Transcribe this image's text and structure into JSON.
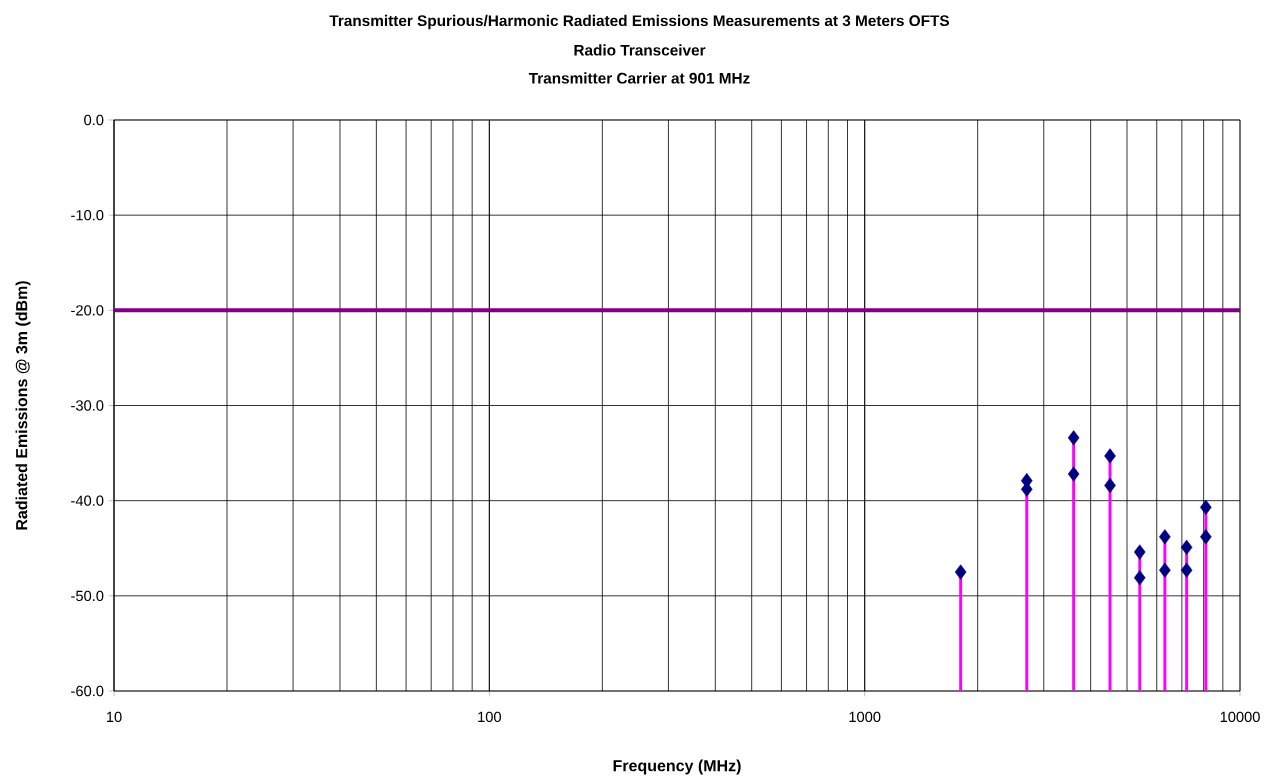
{
  "chart_data": {
    "type": "scatter",
    "title": "Transmitter Spurious/Harmonic Radiated Emissions  Measurements at 3 Meters OFTS",
    "subtitle": "Radio Transceiver",
    "annotations": [
      "Transmitter Carrier at 901 MHz"
    ],
    "xlabel": "Frequency (MHz)",
    "ylabel": "Radiated Emissions @ 3m (dBm)",
    "x": [
      1802,
      2703,
      3604,
      4505,
      5406,
      6307,
      7208,
      8109
    ],
    "series": [
      {
        "type": "scatter",
        "color": "#000080",
        "marker": "diamond",
        "values": [
          -47.5,
          -37.9,
          -33.4,
          -35.3,
          -45.4,
          -43.8,
          -44.9,
          -40.7
        ],
        "errors": [
          [
            -60,
            -47.5
          ],
          [
            -60,
            -37.9
          ],
          [
            -60,
            -33.4
          ],
          [
            -60,
            -35.3
          ],
          [
            -60,
            -45.4
          ],
          [
            -60,
            -43.8
          ],
          [
            -60,
            -44.9
          ],
          [
            -60,
            -40.7
          ]
        ]
      },
      {
        "type": "scatter",
        "color": "#000080",
        "marker": "diamond",
        "values": [
          null,
          -38.8,
          -37.2,
          -38.4,
          -48.1,
          -47.3,
          -47.3,
          -43.8
        ]
      }
    ],
    "log": "x",
    "xlim": [
      10,
      10000
    ],
    "xticks": [
      10,
      100,
      1000,
      10000
    ],
    "ylim": [
      -60,
      0
    ],
    "yticks": [
      {
        "value": -60,
        "label": "-60.0"
      },
      {
        "value": -50,
        "label": "-50.0"
      },
      {
        "value": -40,
        "label": "-40.0"
      },
      {
        "value": -30,
        "label": "-30.0"
      },
      {
        "value": -20,
        "label": "-20.0"
      },
      {
        "value": -10,
        "label": "-10.0"
      },
      {
        "value": 0,
        "label": "0.0"
      }
    ],
    "grid": true,
    "ref_lines": [
      {
        "axis": "y",
        "value": -20,
        "color": "#800080",
        "line_style": "solid"
      }
    ]
  }
}
